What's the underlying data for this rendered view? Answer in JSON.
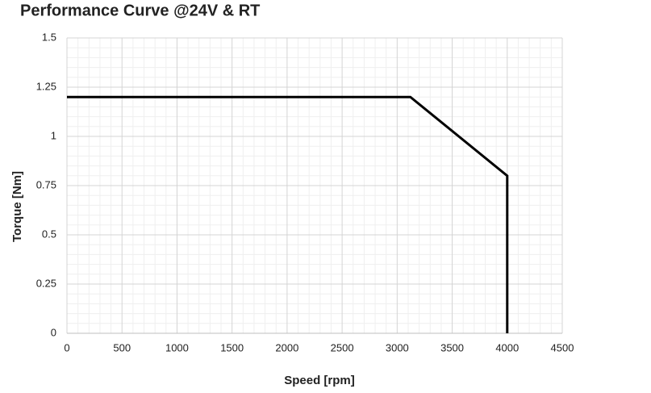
{
  "chart_data": {
    "type": "line",
    "title": "Performance Curve @24V & RT",
    "x_label": "Speed [rpm]",
    "y_label": "Torque [Nm]",
    "x": [
      0,
      3120,
      4000,
      4000
    ],
    "series": [
      {
        "name": "Torque",
        "color": "#000000",
        "values": [
          1.2,
          1.2,
          0.8,
          0
        ]
      }
    ],
    "xlim": [
      0,
      4500
    ],
    "xticks": [
      0,
      500,
      1000,
      1500,
      2000,
      2500,
      3000,
      3500,
      4000,
      4500
    ],
    "ylim": [
      0,
      1.5
    ],
    "yticks": [
      0,
      0.25,
      0.5,
      0.75,
      1,
      1.25,
      1.5
    ],
    "grid": true,
    "legend": false
  }
}
